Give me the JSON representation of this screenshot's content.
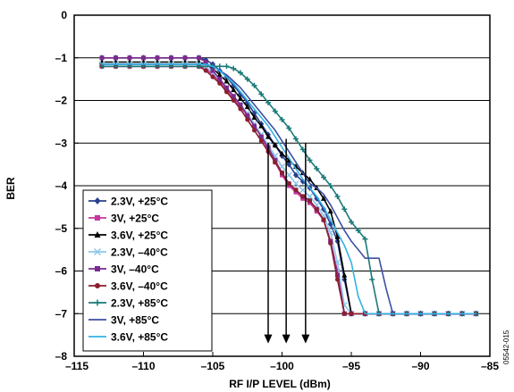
{
  "chart_data": {
    "type": "line",
    "xlabel": "RF I/P LEVEL (dBm)",
    "ylabel": "BER",
    "xlim": [
      -115,
      -85
    ],
    "ylim": [
      -8,
      0
    ],
    "xticks": [
      -115,
      -110,
      -105,
      -100,
      -95,
      -90,
      -85
    ],
    "xtick_labels": [
      "–115",
      "–110",
      "–105",
      "–100",
      "–95",
      "–90",
      "–85"
    ],
    "yticks": [
      0,
      -1,
      -2,
      -3,
      -4,
      -5,
      -6,
      -7,
      -8
    ],
    "ytick_labels": [
      "0",
      "–1",
      "–2",
      "–3",
      "–4",
      "–5",
      "–6",
      "–7",
      "–8"
    ],
    "grid": "horizontal",
    "legend_position": "bottom-left",
    "figure_id": "05542-015",
    "arrows": [
      {
        "x": -101,
        "from_y": -3.0,
        "to_y": -7.7
      },
      {
        "x": -99.7,
        "from_y": -2.9,
        "to_y": -7.7
      },
      {
        "x": -98.3,
        "from_y": -3.0,
        "to_y": -7.7
      }
    ],
    "series": [
      {
        "name": "2.3V, +25°C",
        "color": "#2a3f8f",
        "marker": "diamond",
        "x": [
          -113,
          -112,
          -111,
          -110,
          -109,
          -108,
          -107,
          -106,
          -105.5,
          -105,
          -104.5,
          -104,
          -103.5,
          -103,
          -102.5,
          -102,
          -101.5,
          -101,
          -100.5,
          -100,
          -99.5,
          -99,
          -98.5,
          -98,
          -97.5,
          -97,
          -96.5,
          -96,
          -95.5,
          -95,
          -94,
          -93,
          -92,
          -91,
          -90,
          -89,
          -88,
          -87,
          -86
        ],
        "y": [
          -1.0,
          -1.0,
          -1.0,
          -1.0,
          -1.0,
          -1.0,
          -1.0,
          -1.0,
          -1.05,
          -1.15,
          -1.3,
          -1.45,
          -1.65,
          -1.85,
          -2.05,
          -2.3,
          -2.55,
          -2.8,
          -3.05,
          -3.3,
          -3.5,
          -3.75,
          -3.9,
          -4.05,
          -4.3,
          -4.55,
          -4.9,
          -5.3,
          -6.2,
          -7.0,
          -7.0,
          -7.0,
          -7.0,
          -7.0,
          -7.0,
          -7.0,
          -7.0,
          -7.0,
          -7.0
        ]
      },
      {
        "name": "3V, +25°C",
        "color": "#c8359e",
        "marker": "square",
        "x": [
          -113,
          -112,
          -111,
          -110,
          -109,
          -108,
          -107,
          -106,
          -105.5,
          -105,
          -104.5,
          -104,
          -103.5,
          -103,
          -102.5,
          -102,
          -101.5,
          -101,
          -100.5,
          -100,
          -99.5,
          -99,
          -98.5,
          -98,
          -97.5,
          -97,
          -96.5,
          -96,
          -95.5,
          -95,
          -94,
          -93,
          -92,
          -91,
          -90,
          -89,
          -88,
          -87,
          -86
        ],
        "y": [
          -1.2,
          -1.2,
          -1.2,
          -1.2,
          -1.2,
          -1.2,
          -1.2,
          -1.2,
          -1.25,
          -1.4,
          -1.55,
          -1.75,
          -1.95,
          -2.15,
          -2.35,
          -2.6,
          -2.85,
          -3.15,
          -3.45,
          -3.75,
          -4.0,
          -4.15,
          -4.3,
          -4.4,
          -4.6,
          -4.8,
          -5.3,
          -6.0,
          -7.0,
          -7.0,
          -7.0,
          -7.0,
          -7.0,
          -7.0,
          -7.0,
          -7.0,
          -7.0,
          -7.0,
          -7.0
        ]
      },
      {
        "name": "3.6V, +25°C",
        "color": "#000000",
        "marker": "triangle",
        "x": [
          -113,
          -112,
          -111,
          -110,
          -109,
          -108,
          -107,
          -106,
          -105.5,
          -105,
          -104.5,
          -104,
          -103.5,
          -103,
          -102.5,
          -102,
          -101.5,
          -101,
          -100.5,
          -100,
          -99.5,
          -99,
          -98.5,
          -98,
          -97.5,
          -97,
          -96.5,
          -96,
          -95.5,
          -95,
          -94,
          -93,
          -92,
          -91,
          -90,
          -89,
          -88,
          -87,
          -86
        ],
        "y": [
          -1.1,
          -1.1,
          -1.1,
          -1.1,
          -1.1,
          -1.1,
          -1.1,
          -1.1,
          -1.15,
          -1.25,
          -1.4,
          -1.55,
          -1.75,
          -1.95,
          -2.15,
          -2.4,
          -2.6,
          -2.85,
          -3.05,
          -3.25,
          -3.4,
          -3.55,
          -3.7,
          -3.85,
          -4.05,
          -4.3,
          -4.6,
          -5.2,
          -6.1,
          -7.0,
          -7.0,
          -7.0,
          -7.0,
          -7.0,
          -7.0,
          -7.0,
          -7.0,
          -7.0,
          -7.0
        ]
      },
      {
        "name": "2.3V, –40°C",
        "color": "#8ec8e8",
        "marker": "x",
        "x": [
          -113,
          -112,
          -111,
          -110,
          -109,
          -108,
          -107,
          -106,
          -105.5,
          -105,
          -104.5,
          -104,
          -103.5,
          -103,
          -102.5,
          -102,
          -101.5,
          -101,
          -100.5,
          -100,
          -99.5,
          -99,
          -98.5,
          -98,
          -97.5,
          -97,
          -96.5,
          -96,
          -95.5,
          -95,
          -94,
          -93,
          -92,
          -91,
          -90,
          -89,
          -88,
          -87,
          -86
        ],
        "y": [
          -1.15,
          -1.15,
          -1.15,
          -1.15,
          -1.15,
          -1.15,
          -1.15,
          -1.15,
          -1.2,
          -1.35,
          -1.5,
          -1.7,
          -1.9,
          -2.1,
          -2.3,
          -2.55,
          -2.8,
          -3.05,
          -3.3,
          -3.55,
          -3.75,
          -3.95,
          -4.1,
          -4.25,
          -4.45,
          -4.7,
          -5.1,
          -5.8,
          -6.8,
          -7.0,
          -7.0,
          -7.0,
          -7.0,
          -7.0,
          -7.0,
          -7.0,
          -7.0,
          -7.0,
          -7.0
        ]
      },
      {
        "name": "3V, –40°C",
        "color": "#7a2b8f",
        "marker": "square",
        "x": [
          -113,
          -112,
          -111,
          -110,
          -109,
          -108,
          -107,
          -106,
          -105.5,
          -105,
          -104.5,
          -104,
          -103.5,
          -103,
          -102.5,
          -102,
          -101.5,
          -101,
          -100.5,
          -100,
          -99.5,
          -99,
          -98.5,
          -98,
          -97.5,
          -97,
          -96.5,
          -96,
          -95.5,
          -95,
          -94,
          -93,
          -92,
          -91,
          -90,
          -89,
          -88,
          -87,
          -86
        ],
        "y": [
          -1.0,
          -1.0,
          -1.0,
          -1.0,
          -1.0,
          -1.0,
          -1.0,
          -1.0,
          -1.1,
          -1.3,
          -1.5,
          -1.7,
          -1.9,
          -2.1,
          -2.35,
          -2.6,
          -2.85,
          -3.1,
          -3.4,
          -3.7,
          -3.95,
          -4.1,
          -4.25,
          -4.35,
          -4.55,
          -4.8,
          -5.3,
          -6.1,
          -7.0,
          -7.0,
          -7.0,
          -7.0,
          -7.0,
          -7.0,
          -7.0,
          -7.0,
          -7.0,
          -7.0,
          -7.0
        ]
      },
      {
        "name": "3.6V, –40°C",
        "color": "#8b1f2c",
        "marker": "circle",
        "x": [
          -113,
          -112,
          -111,
          -110,
          -109,
          -108,
          -107,
          -106,
          -105.5,
          -105,
          -104.5,
          -104,
          -103.5,
          -103,
          -102.5,
          -102,
          -101.5,
          -101,
          -100.5,
          -100,
          -99.5,
          -99,
          -98.5,
          -98,
          -97.5,
          -97,
          -96.5,
          -96,
          -95.5,
          -95,
          -94,
          -93,
          -92,
          -91,
          -90,
          -89,
          -88,
          -87,
          -86
        ],
        "y": [
          -1.2,
          -1.2,
          -1.2,
          -1.2,
          -1.2,
          -1.2,
          -1.2,
          -1.2,
          -1.3,
          -1.45,
          -1.6,
          -1.8,
          -2.0,
          -2.2,
          -2.45,
          -2.7,
          -2.95,
          -3.2,
          -3.45,
          -3.7,
          -3.95,
          -4.1,
          -4.25,
          -4.35,
          -4.55,
          -4.8,
          -5.35,
          -6.2,
          -7.0,
          -7.0,
          -7.0,
          -7.0,
          -7.0,
          -7.0,
          -7.0,
          -7.0,
          -7.0,
          -7.0,
          -7.0
        ]
      },
      {
        "name": "2.3V, +85°C",
        "color": "#1a7a78",
        "marker": "plus",
        "x": [
          -113,
          -112,
          -111,
          -110,
          -109,
          -108,
          -107,
          -106,
          -105,
          -104.5,
          -104,
          -103.5,
          -103,
          -102.5,
          -102,
          -101.5,
          -101,
          -100.5,
          -100,
          -99.5,
          -99,
          -98.5,
          -98,
          -97.5,
          -97,
          -96.5,
          -96,
          -95.5,
          -95,
          -94.5,
          -94,
          -93.5,
          -93,
          -92,
          -91,
          -90,
          -89,
          -88,
          -87,
          -86
        ],
        "y": [
          -1.2,
          -1.2,
          -1.2,
          -1.2,
          -1.2,
          -1.2,
          -1.2,
          -1.2,
          -1.2,
          -1.2,
          -1.2,
          -1.25,
          -1.35,
          -1.5,
          -1.65,
          -1.85,
          -2.05,
          -2.25,
          -2.45,
          -2.65,
          -2.9,
          -3.15,
          -3.4,
          -3.6,
          -3.8,
          -4.0,
          -4.25,
          -4.55,
          -4.85,
          -5.05,
          -5.25,
          -6.2,
          -7.0,
          -7.0,
          -7.0,
          -7.0,
          -7.0,
          -7.0,
          -7.0,
          -7.0
        ]
      },
      {
        "name": "3V, +85°C",
        "color": "#3d4fa3",
        "marker": "line",
        "x": [
          -113,
          -112,
          -111,
          -110,
          -109,
          -108,
          -107,
          -106,
          -105.5,
          -105,
          -104.5,
          -104,
          -103.5,
          -103,
          -102.5,
          -102,
          -101.5,
          -101,
          -100.5,
          -100,
          -99.5,
          -99,
          -98.5,
          -98,
          -97.5,
          -97,
          -96.5,
          -96,
          -95.5,
          -95,
          -94.5,
          -94,
          -93.5,
          -93,
          -92.5,
          -92,
          -91,
          -90,
          -89,
          -88,
          -87,
          -86
        ],
        "y": [
          -1.15,
          -1.15,
          -1.15,
          -1.15,
          -1.15,
          -1.15,
          -1.15,
          -1.15,
          -1.15,
          -1.2,
          -1.3,
          -1.4,
          -1.55,
          -1.7,
          -1.9,
          -2.1,
          -2.3,
          -2.5,
          -2.7,
          -2.95,
          -3.2,
          -3.45,
          -3.7,
          -3.95,
          -4.05,
          -4.2,
          -4.45,
          -4.75,
          -5.05,
          -5.3,
          -5.5,
          -5.7,
          -5.7,
          -5.7,
          -6.4,
          -7.0,
          -7.0,
          -7.0,
          -7.0,
          -7.0,
          -7.0,
          -7.0
        ]
      },
      {
        "name": "3.6V, +85°C",
        "color": "#33b2e3",
        "marker": "line",
        "x": [
          -113,
          -112,
          -111,
          -110,
          -109,
          -108,
          -107,
          -106,
          -105.5,
          -105,
          -104.5,
          -104,
          -103.5,
          -103,
          -102.5,
          -102,
          -101.5,
          -101,
          -100.5,
          -100,
          -99.5,
          -99,
          -98.5,
          -98,
          -97.5,
          -97,
          -96.5,
          -96,
          -95.5,
          -95,
          -94.5,
          -94,
          -93,
          -92,
          -91,
          -90,
          -89,
          -88,
          -87,
          -86
        ],
        "y": [
          -1.15,
          -1.15,
          -1.15,
          -1.15,
          -1.15,
          -1.15,
          -1.15,
          -1.15,
          -1.15,
          -1.2,
          -1.3,
          -1.45,
          -1.6,
          -1.8,
          -2.0,
          -2.2,
          -2.4,
          -2.6,
          -2.85,
          -3.1,
          -3.35,
          -3.6,
          -3.85,
          -4.05,
          -4.25,
          -4.5,
          -4.8,
          -5.1,
          -5.4,
          -5.8,
          -6.6,
          -7.0,
          -7.0,
          -7.0,
          -7.0,
          -7.0,
          -7.0,
          -7.0,
          -7.0,
          -7.0
        ]
      }
    ]
  }
}
